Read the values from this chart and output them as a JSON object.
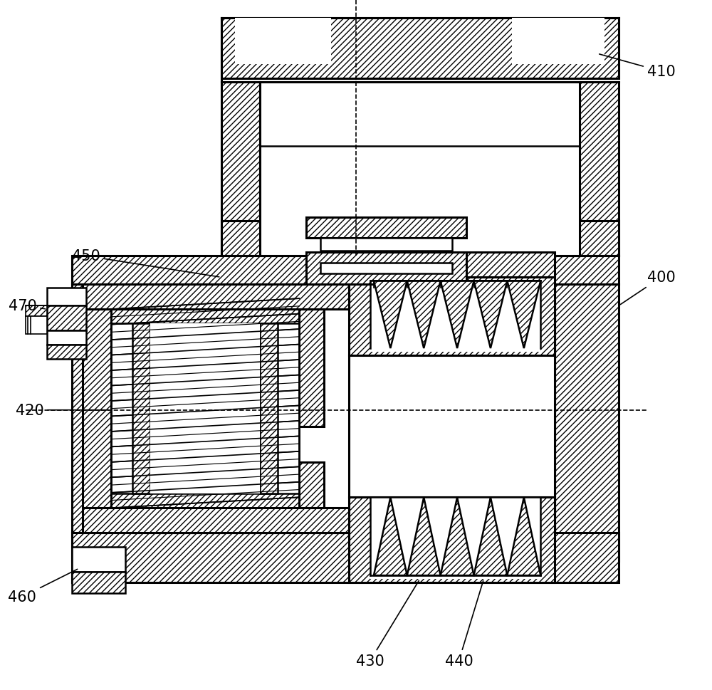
{
  "bg_color": "#ffffff",
  "line_color": "#000000",
  "fig_width": 10.0,
  "fig_height": 9.7,
  "label_fontsize": 15
}
